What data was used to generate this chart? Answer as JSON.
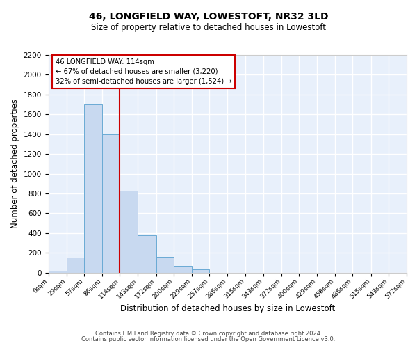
{
  "title": "46, LONGFIELD WAY, LOWESTOFT, NR32 3LD",
  "subtitle": "Size of property relative to detached houses in Lowestoft",
  "xlabel": "Distribution of detached houses by size in Lowestoft",
  "ylabel": "Number of detached properties",
  "bar_color": "#c8d9f0",
  "bar_edge_color": "#6aaad4",
  "background_color": "#e8f0fb",
  "grid_color": "#ffffff",
  "bin_edges": [
    0,
    29,
    57,
    86,
    114,
    143,
    172,
    200,
    229,
    257,
    286,
    315,
    343,
    372,
    400,
    429,
    458,
    486,
    515,
    543,
    572
  ],
  "bin_labels": [
    "0sqm",
    "29sqm",
    "57sqm",
    "86sqm",
    "114sqm",
    "143sqm",
    "172sqm",
    "200sqm",
    "229sqm",
    "257sqm",
    "286sqm",
    "315sqm",
    "343sqm",
    "372sqm",
    "400sqm",
    "429sqm",
    "458sqm",
    "486sqm",
    "515sqm",
    "543sqm",
    "572sqm"
  ],
  "bar_heights": [
    20,
    155,
    1700,
    1395,
    830,
    380,
    160,
    65,
    30,
    0,
    0,
    0,
    0,
    0,
    0,
    0,
    0,
    0,
    0,
    0
  ],
  "vline_x": 114,
  "vline_color": "#cc0000",
  "annotation_line1": "46 LONGFIELD WAY: 114sqm",
  "annotation_line2": "← 67% of detached houses are smaller (3,220)",
  "annotation_line3": "32% of semi-detached houses are larger (1,524) →",
  "annotation_box_color": "#cc0000",
  "ylim": [
    0,
    2200
  ],
  "yticks": [
    0,
    200,
    400,
    600,
    800,
    1000,
    1200,
    1400,
    1600,
    1800,
    2000,
    2200
  ],
  "footer1": "Contains HM Land Registry data © Crown copyright and database right 2024.",
  "footer2": "Contains public sector information licensed under the Open Government Licence v3.0."
}
